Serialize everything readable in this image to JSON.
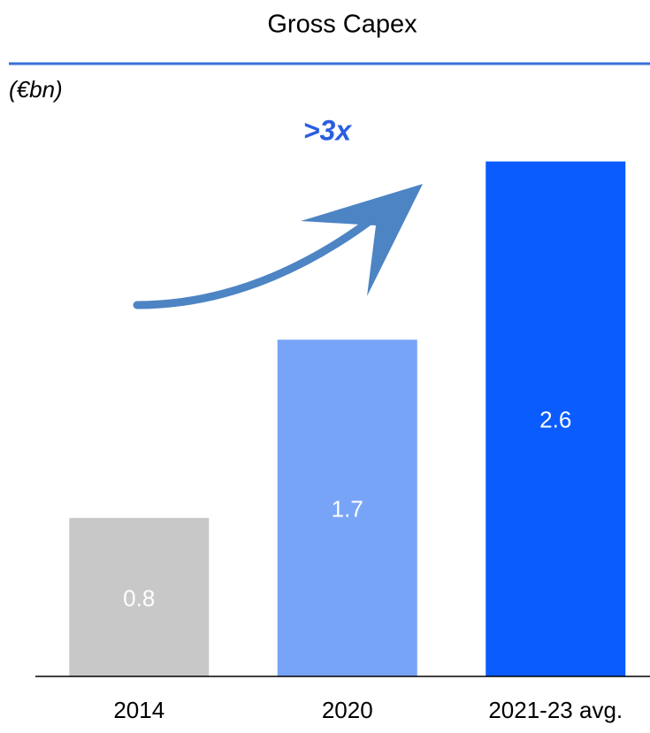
{
  "chart_data": {
    "type": "bar",
    "title": "Gross Capex",
    "subtitle": "(€bn)",
    "annotation": ">3x",
    "categories": [
      "2014",
      "2020",
      "2021-23 avg."
    ],
    "values": [
      0.8,
      1.7,
      2.6
    ],
    "colors": [
      "#c8c8c8",
      "#78a4f8",
      "#0a5cff"
    ],
    "ylim": [
      0,
      3
    ]
  }
}
